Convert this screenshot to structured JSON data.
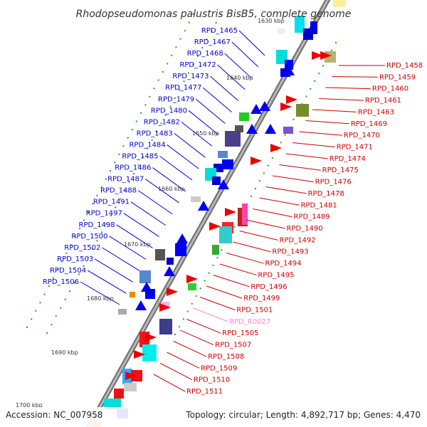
{
  "title": "Rhodopseudomonas palustris BisB5, complete genome",
  "footer": {
    "accession": "Accession: NC_007958",
    "topology": "Topology: circular; Length: 4,892,717 bp; Genes: 4,470"
  },
  "colors": {
    "forward_label": "#0000cc",
    "reverse_label": "#cc0000",
    "rna_label": "#ff88cc",
    "backbone": "#8a8a8a",
    "tick": "#2a9a2a"
  },
  "kbp_marks": [
    "1630 kbp",
    "1640 kbp",
    "1650 kbp",
    "1660 kbp",
    "1670 kbp",
    "1680 kbp",
    "1690 kbp",
    "1700 kbp"
  ],
  "left_labels": [
    "RPD_1465",
    "RPD_1467",
    "RPD_1468",
    "RPD_1472",
    "RPD_1473",
    "RPD_1477",
    "RPD_1479",
    "RPD_1480",
    "RPD_1482",
    "RPD_1483",
    "RPD_1484",
    "RPD_1485",
    "RPD_1486",
    "RPD_1487",
    "RPD_1488",
    "RPD_1491",
    "RPD_1497",
    "RPD_1498",
    "RPD_1500",
    "RPD_1502",
    "RPD_1503",
    "RPD_1504",
    "RPD_1506"
  ],
  "right_labels": [
    "RPD_1458",
    "RPD_1459",
    "RPD_1460",
    "RPD_1461",
    "RPD_1463",
    "RPD_1469",
    "RPD_1470",
    "RPD_1471",
    "RPD_1474",
    "RPD_1475",
    "RPD_1476",
    "RPD_1478",
    "RPD_1481",
    "RPD_1489",
    "RPD_1490",
    "RPD_1492",
    "RPD_1493",
    "RPD_1494",
    "RPD_1495",
    "RPD_1496",
    "RPD_1499",
    "RPD_1501",
    "RPD_R0027",
    "RPD_1505",
    "RPD_1507",
    "RPD_1508",
    "RPD_1509",
    "RPD_1510",
    "RPD_1511"
  ],
  "right_label_kinds": [
    "gene",
    "gene",
    "gene",
    "gene",
    "gene",
    "gene",
    "gene",
    "gene",
    "gene",
    "gene",
    "gene",
    "gene",
    "gene",
    "gene",
    "gene",
    "gene",
    "gene",
    "gene",
    "gene",
    "gene",
    "gene",
    "gene",
    "rna",
    "gene",
    "gene",
    "gene",
    "gene",
    "gene",
    "gene"
  ]
}
